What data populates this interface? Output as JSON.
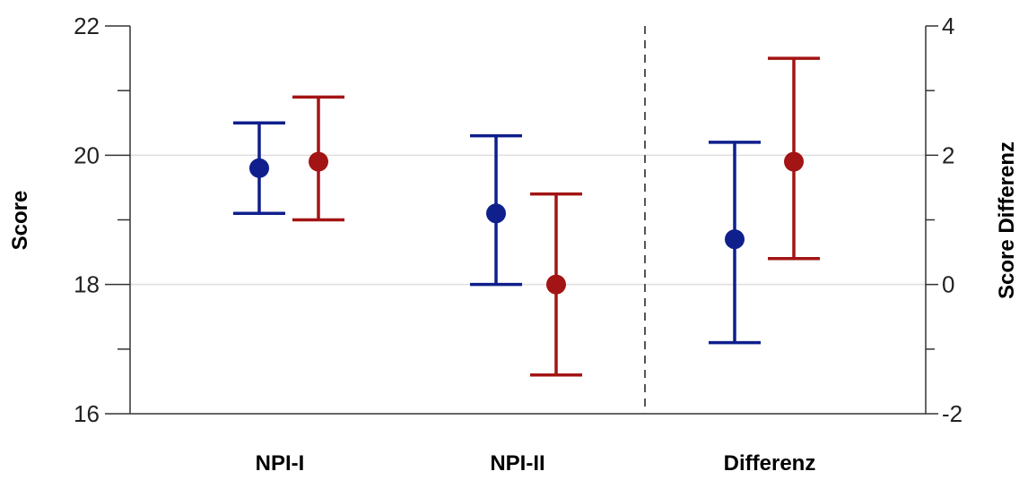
{
  "chart_data": {
    "type": "errorbar",
    "categories": [
      "NPI-I",
      "NPI-II",
      "Differenz"
    ],
    "ylabel": "Score",
    "ylabel_right": "Score Differenz",
    "ylim": [
      16,
      22
    ],
    "ylim_right": [
      -2,
      4
    ],
    "yticks": [
      "16",
      "18",
      "20",
      "22"
    ],
    "yticks_right": [
      "-2",
      "0",
      "2",
      "4"
    ],
    "grid": true,
    "colors": {
      "blue": "#0f1f8c",
      "red": "#a31414"
    },
    "series": [
      {
        "color": "blue",
        "points": [
          {
            "category": "NPI-I",
            "axis": "left",
            "mean": 19.8,
            "lower": 19.1,
            "upper": 20.5
          },
          {
            "category": "NPI-II",
            "axis": "left",
            "mean": 19.1,
            "lower": 18.0,
            "upper": 20.3
          },
          {
            "category": "Differenz",
            "axis": "right",
            "mean": 0.7,
            "lower": -0.9,
            "upper": 2.2
          }
        ]
      },
      {
        "color": "red",
        "points": [
          {
            "category": "NPI-I",
            "axis": "left",
            "mean": 19.9,
            "lower": 19.0,
            "upper": 20.9
          },
          {
            "category": "NPI-II",
            "axis": "left",
            "mean": 18.0,
            "lower": 16.6,
            "upper": 19.4
          },
          {
            "category": "Differenz",
            "axis": "right",
            "mean": 1.9,
            "lower": 0.4,
            "upper": 3.5
          }
        ]
      }
    ]
  }
}
